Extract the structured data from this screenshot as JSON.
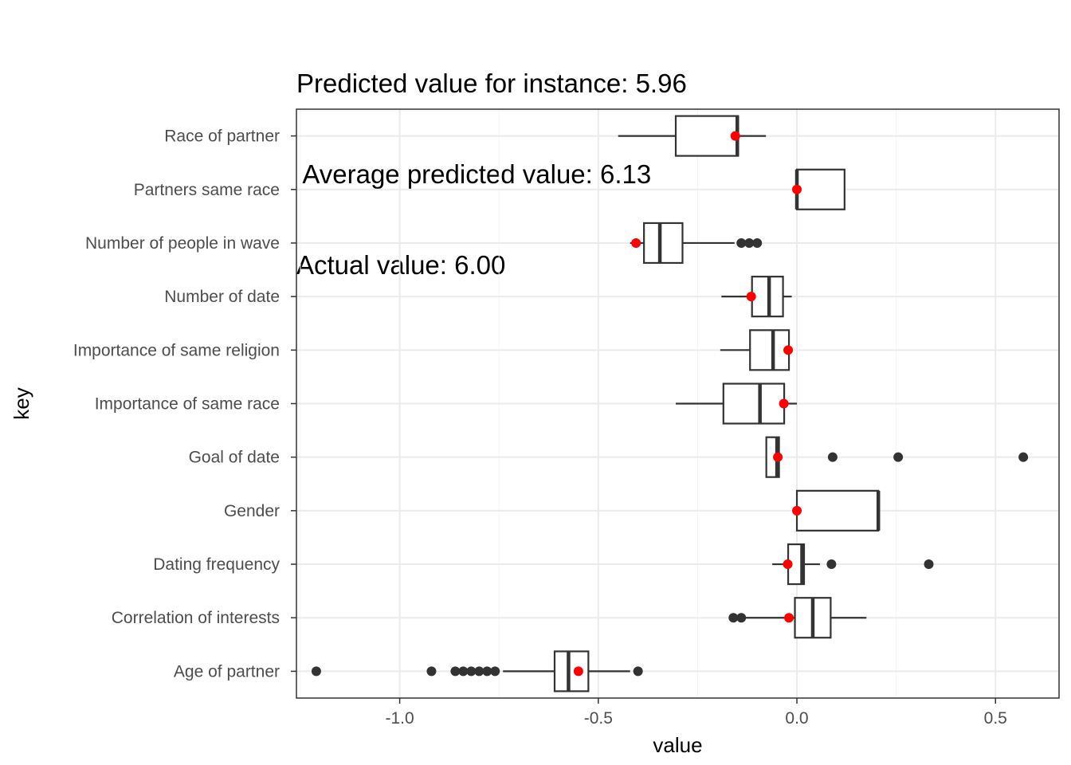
{
  "chart_data": {
    "type": "boxplot",
    "title_lines": [
      "Predicted value for instance: 5.96",
      " Average predicted value: 6.13",
      "Actual value: 6.00"
    ],
    "xlabel": "value",
    "ylabel": "key",
    "xlim": [
      -1.26,
      0.66
    ],
    "x_ticks": [
      -1.0,
      -0.5,
      0.0,
      0.5
    ],
    "x_tick_labels": [
      "-1.0",
      "-0.5",
      "0.0",
      "0.5"
    ],
    "grid": true,
    "box_color": "#333333",
    "point_color": "#ff0000",
    "categories": [
      {
        "key": "Race of partner",
        "whisker_low": -0.45,
        "q1": -0.305,
        "median": -0.15,
        "q3": -0.148,
        "whisker_high": -0.078,
        "outliers": [],
        "instance": -0.155
      },
      {
        "key": "Partners same race",
        "whisker_low": 0.0,
        "q1": 0.0,
        "median": 0.0,
        "q3": 0.12,
        "whisker_high": 0.12,
        "outliers": [],
        "instance": 0.0
      },
      {
        "key": "Number of people in wave",
        "whisker_low": -0.42,
        "q1": -0.385,
        "median": -0.345,
        "q3": -0.288,
        "whisker_high": -0.157,
        "outliers": [
          -0.14,
          -0.12,
          -0.1
        ],
        "instance": -0.405
      },
      {
        "key": "Number of date",
        "whisker_low": -0.19,
        "q1": -0.113,
        "median": -0.07,
        "q3": -0.035,
        "whisker_high": -0.013,
        "outliers": [],
        "instance": -0.115
      },
      {
        "key": "Importance of same religion",
        "whisker_low": -0.193,
        "q1": -0.118,
        "median": -0.06,
        "q3": -0.02,
        "whisker_high": -0.02,
        "outliers": [],
        "instance": -0.022
      },
      {
        "key": "Importance of same race",
        "whisker_low": -0.305,
        "q1": -0.185,
        "median": -0.093,
        "q3": -0.032,
        "whisker_high": 0.0,
        "outliers": [],
        "instance": -0.033
      },
      {
        "key": "Goal of date",
        "whisker_low": -0.077,
        "q1": -0.077,
        "median": -0.05,
        "q3": -0.045,
        "whisker_high": -0.045,
        "outliers": [
          0.09,
          0.255,
          0.57
        ],
        "instance": -0.048
      },
      {
        "key": "Gender",
        "whisker_low": 0.0,
        "q1": 0.0,
        "median": 0.205,
        "q3": 0.205,
        "whisker_high": 0.205,
        "outliers": [],
        "instance": 0.0
      },
      {
        "key": "Dating frequency",
        "whisker_low": -0.062,
        "q1": -0.022,
        "median": 0.013,
        "q3": 0.018,
        "whisker_high": 0.058,
        "outliers": [
          0.087,
          0.332
        ],
        "instance": -0.023
      },
      {
        "key": "Correlation of interests",
        "whisker_low": -0.13,
        "q1": -0.005,
        "median": 0.04,
        "q3": 0.085,
        "whisker_high": 0.175,
        "outliers": [
          -0.16,
          -0.14
        ],
        "instance": -0.02
      },
      {
        "key": "Age of partner",
        "whisker_low": -0.74,
        "q1": -0.61,
        "median": -0.575,
        "q3": -0.525,
        "whisker_high": -0.42,
        "outliers": [
          -1.21,
          -0.92,
          -0.86,
          -0.84,
          -0.82,
          -0.8,
          -0.78,
          -0.76,
          -0.4
        ],
        "instance": -0.55
      }
    ]
  }
}
